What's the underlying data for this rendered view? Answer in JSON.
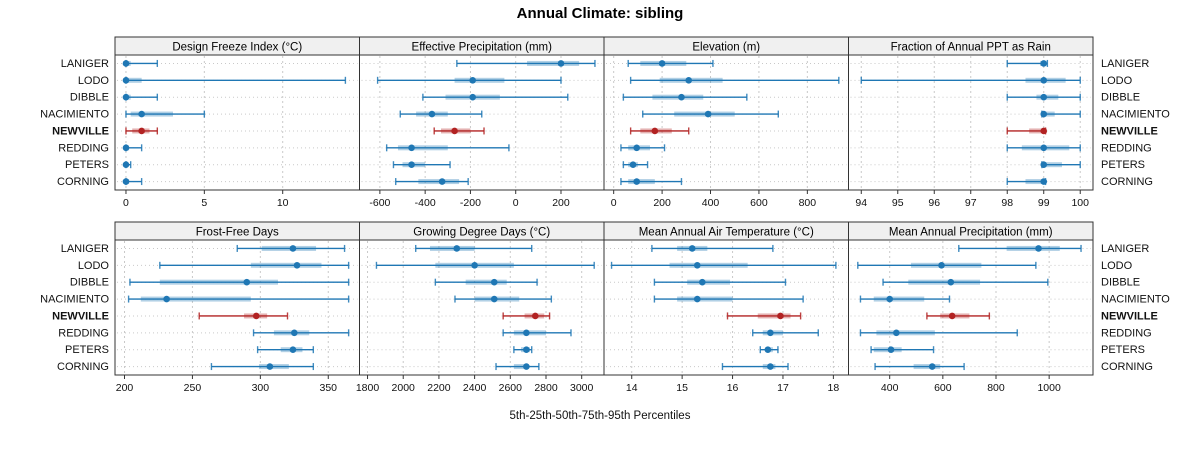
{
  "title": "Annual Climate: sibling",
  "caption": "5th-25th-50th-75th-95th Percentiles",
  "rows": [
    "LANIGER",
    "LODO",
    "DIBBLE",
    "NACIMIENTO",
    "NEWVILLE",
    "REDDING",
    "PETERS",
    "CORNING"
  ],
  "highlight_row": "NEWVILLE",
  "colors": {
    "series": "#1f77b4",
    "highlight": "#b22222",
    "panel_border": "#333333",
    "header_bg": "#f0f0f0",
    "grid": "#c9c9c9",
    "tick": "#333333",
    "text": "#111111"
  },
  "chart_data": {
    "type": "dotplot-interval",
    "percentiles": [
      5,
      25,
      50,
      75,
      95
    ],
    "legend_note": "one horizontal interval per location: thin line p5-p95 with end caps, thick band p25-p75, dot at p50",
    "panels": [
      {
        "title": "Design Freeze Index (°C)",
        "row": 0,
        "col": 0,
        "xlim": [
          -0.7,
          14.9
        ],
        "ticks": [
          0,
          5,
          10
        ],
        "values": [
          [
            0,
            0,
            0,
            0.3,
            2
          ],
          [
            0,
            0,
            0,
            1,
            14
          ],
          [
            0,
            0,
            0,
            0.3,
            2
          ],
          [
            0,
            0.3,
            1,
            3,
            5
          ],
          [
            0,
            0.4,
            1,
            1.5,
            2
          ],
          [
            0,
            0,
            0,
            0.2,
            1
          ],
          [
            0,
            0,
            0,
            0.1,
            0.3
          ],
          [
            0,
            0,
            0,
            0.2,
            1
          ]
        ]
      },
      {
        "title": "Effective Precipitation (mm)",
        "row": 0,
        "col": 1,
        "xlim": [
          -690,
          390
        ],
        "ticks": [
          -600,
          -400,
          -200,
          0,
          200
        ],
        "values": [
          [
            -260,
            50,
            200,
            280,
            350
          ],
          [
            -610,
            -270,
            -190,
            -50,
            200
          ],
          [
            -410,
            -310,
            -190,
            -70,
            230
          ],
          [
            -510,
            -440,
            -370,
            -300,
            -150
          ],
          [
            -360,
            -330,
            -270,
            -200,
            -140
          ],
          [
            -570,
            -520,
            -460,
            -300,
            -30
          ],
          [
            -540,
            -500,
            -460,
            -400,
            -290
          ],
          [
            -530,
            -430,
            -325,
            -250,
            -210
          ]
        ]
      },
      {
        "title": "Elevation (m)",
        "row": 0,
        "col": 2,
        "xlim": [
          -40,
          970
        ],
        "ticks": [
          0,
          200,
          400,
          600,
          800
        ],
        "values": [
          [
            60,
            110,
            200,
            300,
            410
          ],
          [
            70,
            190,
            310,
            450,
            930
          ],
          [
            40,
            160,
            280,
            370,
            550
          ],
          [
            120,
            250,
            390,
            500,
            680
          ],
          [
            70,
            110,
            170,
            240,
            310
          ],
          [
            30,
            60,
            95,
            150,
            210
          ],
          [
            40,
            60,
            80,
            100,
            140
          ],
          [
            30,
            60,
            95,
            170,
            280
          ]
        ]
      },
      {
        "title": "Fraction of Annual PPT as Rain",
        "row": 0,
        "col": 3,
        "xlim": [
          93.65,
          100.35
        ],
        "ticks": [
          94,
          95,
          96,
          97,
          98,
          99,
          100
        ],
        "values": [
          [
            98,
            98.9,
            99,
            99.05,
            99.1
          ],
          [
            94,
            98.5,
            99,
            99.6,
            100
          ],
          [
            98,
            98.8,
            99,
            99.4,
            100
          ],
          [
            98.95,
            99,
            99,
            99.3,
            100
          ],
          [
            98,
            98.6,
            99,
            99,
            99.05
          ],
          [
            98,
            98.4,
            99,
            99.7,
            100
          ],
          [
            98.95,
            99,
            99,
            99.5,
            100
          ],
          [
            98,
            98.5,
            99,
            99,
            99.05
          ]
        ]
      },
      {
        "title": "Frost-Free Days",
        "row": 1,
        "col": 0,
        "xlim": [
          193,
          373
        ],
        "ticks": [
          200,
          250,
          300,
          350
        ],
        "values": [
          [
            283,
            301,
            324,
            341,
            362
          ],
          [
            226,
            293,
            327,
            345,
            365
          ],
          [
            204,
            226,
            290,
            313,
            365
          ],
          [
            203,
            212,
            231,
            293,
            365
          ],
          [
            255,
            288,
            297,
            305,
            320
          ],
          [
            295,
            310,
            325,
            336,
            365
          ],
          [
            298,
            315,
            324,
            331,
            339
          ],
          [
            264,
            299,
            307,
            321,
            339
          ]
        ]
      },
      {
        "title": "Growing Degree Days (°C)",
        "row": 1,
        "col": 1,
        "xlim": [
          1755,
          3125
        ],
        "ticks": [
          1800,
          2000,
          2200,
          2400,
          2600,
          2800,
          3000
        ],
        "values": [
          [
            2070,
            2150,
            2300,
            2400,
            2720
          ],
          [
            1850,
            2180,
            2400,
            2620,
            3070
          ],
          [
            2180,
            2350,
            2510,
            2580,
            2750
          ],
          [
            2290,
            2400,
            2510,
            2650,
            2830
          ],
          [
            2560,
            2680,
            2740,
            2790,
            2820
          ],
          [
            2560,
            2620,
            2690,
            2800,
            2940
          ],
          [
            2620,
            2660,
            2690,
            2710,
            2720
          ],
          [
            2520,
            2620,
            2690,
            2700,
            2760
          ]
        ]
      },
      {
        "title": "Mean Annual Air Temperature (°C)",
        "row": 1,
        "col": 2,
        "xlim": [
          13.45,
          18.3
        ],
        "ticks": [
          14,
          15,
          16,
          17,
          18
        ],
        "values": [
          [
            14.4,
            14.9,
            15.2,
            15.5,
            16.8
          ],
          [
            13.6,
            14.75,
            15.3,
            16.3,
            18.05
          ],
          [
            14.45,
            15.1,
            15.4,
            15.95,
            17.05
          ],
          [
            14.45,
            14.9,
            15.3,
            16.0,
            17.4
          ],
          [
            15.9,
            16.5,
            16.95,
            17.15,
            17.35
          ],
          [
            16.4,
            16.6,
            16.75,
            17.0,
            17.7
          ],
          [
            16.55,
            16.65,
            16.7,
            16.8,
            16.9
          ],
          [
            15.8,
            16.6,
            16.75,
            16.85,
            17.1
          ]
        ]
      },
      {
        "title": "Mean Annual Precipitation (mm)",
        "row": 1,
        "col": 3,
        "xlim": [
          245,
          1165
        ],
        "ticks": [
          400,
          600,
          800,
          1000
        ],
        "values": [
          [
            660,
            840,
            960,
            1040,
            1120
          ],
          [
            280,
            480,
            595,
            745,
            950
          ],
          [
            375,
            470,
            630,
            740,
            995
          ],
          [
            290,
            340,
            400,
            530,
            625
          ],
          [
            540,
            590,
            635,
            700,
            775
          ],
          [
            290,
            350,
            425,
            570,
            880
          ],
          [
            330,
            340,
            405,
            445,
            565
          ],
          [
            345,
            490,
            560,
            590,
            680
          ]
        ]
      }
    ]
  }
}
